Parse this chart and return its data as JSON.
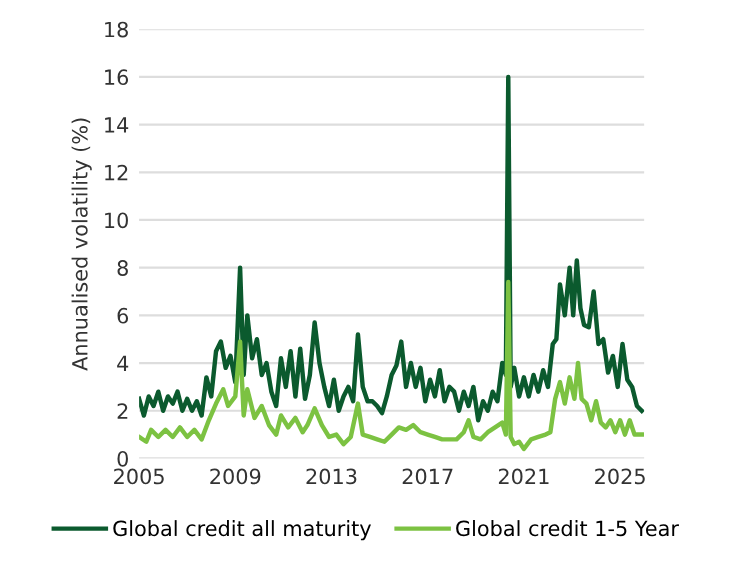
{
  "chart_data": {
    "type": "line",
    "ylabel": "Annualised volatility (%)",
    "xlim": [
      2005,
      2026
    ],
    "xticks": [
      2005,
      2009,
      2013,
      2017,
      2021,
      2025
    ],
    "ylim": [
      0,
      18
    ],
    "yticks": [
      0,
      2,
      4,
      6,
      8,
      10,
      12,
      14,
      16,
      18
    ],
    "grid": "y",
    "legend": "bottom",
    "marker": "none",
    "line_style": "solid",
    "series": [
      {
        "name": "Global credit all maturity",
        "color": "#0b5a2e",
        "x": [
          2005.0,
          2005.2,
          2005.4,
          2005.6,
          2005.8,
          2006.0,
          2006.2,
          2006.4,
          2006.6,
          2006.8,
          2007.0,
          2007.2,
          2007.4,
          2007.6,
          2007.8,
          2008.0,
          2008.2,
          2008.4,
          2008.6,
          2008.8,
          2009.0,
          2009.2,
          2009.35,
          2009.5,
          2009.7,
          2009.9,
          2010.1,
          2010.3,
          2010.5,
          2010.7,
          2010.9,
          2011.1,
          2011.3,
          2011.5,
          2011.7,
          2011.9,
          2012.1,
          2012.3,
          2012.5,
          2012.7,
          2012.9,
          2013.1,
          2013.3,
          2013.5,
          2013.7,
          2013.9,
          2014.1,
          2014.3,
          2014.5,
          2014.7,
          2014.9,
          2015.1,
          2015.3,
          2015.5,
          2015.7,
          2015.9,
          2016.1,
          2016.3,
          2016.5,
          2016.7,
          2016.9,
          2017.1,
          2017.3,
          2017.5,
          2017.7,
          2017.9,
          2018.1,
          2018.3,
          2018.5,
          2018.7,
          2018.9,
          2019.1,
          2019.3,
          2019.5,
          2019.7,
          2019.9,
          2020.1,
          2020.25,
          2020.35,
          2020.45,
          2020.6,
          2020.8,
          2021.0,
          2021.2,
          2021.4,
          2021.6,
          2021.8,
          2022.0,
          2022.2,
          2022.35,
          2022.5,
          2022.7,
          2022.9,
          2023.05,
          2023.2,
          2023.35,
          2023.5,
          2023.7,
          2023.9,
          2024.1,
          2024.3,
          2024.5,
          2024.7,
          2024.9,
          2025.1,
          2025.3,
          2025.5,
          2025.7,
          2025.9
        ],
        "values": [
          2.5,
          1.8,
          2.6,
          2.2,
          2.8,
          2.0,
          2.6,
          2.3,
          2.8,
          2.0,
          2.5,
          2.0,
          2.4,
          1.8,
          3.4,
          2.6,
          4.5,
          4.9,
          3.8,
          4.3,
          3.2,
          8.0,
          3.5,
          6.0,
          4.2,
          5.0,
          3.5,
          4.0,
          2.8,
          2.2,
          4.2,
          3.0,
          4.5,
          2.6,
          4.6,
          2.5,
          3.5,
          5.7,
          4.0,
          3.0,
          2.2,
          3.3,
          2.0,
          2.6,
          3.0,
          2.4,
          5.2,
          3.0,
          2.4,
          2.4,
          2.2,
          1.9,
          2.6,
          3.5,
          3.9,
          4.9,
          3.0,
          4.0,
          3.0,
          3.8,
          2.4,
          3.3,
          2.6,
          3.7,
          2.4,
          3.0,
          2.8,
          2.0,
          2.8,
          2.2,
          3.0,
          1.6,
          2.4,
          2.0,
          2.8,
          2.4,
          4.0,
          3.5,
          16.0,
          3.0,
          3.8,
          2.6,
          3.4,
          2.6,
          3.5,
          2.8,
          3.7,
          3.0,
          4.8,
          5.0,
          7.3,
          6.0,
          8.0,
          6.0,
          8.3,
          6.3,
          5.6,
          5.5,
          7.0,
          4.8,
          5.0,
          3.6,
          4.3,
          3.0,
          4.8,
          3.3,
          3.0,
          2.2,
          2.0
        ]
      },
      {
        "name": "Global credit 1-5 Year",
        "color": "#7cc242",
        "x": [
          2005.0,
          2005.3,
          2005.5,
          2005.8,
          2006.1,
          2006.4,
          2006.7,
          2007.0,
          2007.3,
          2007.6,
          2007.9,
          2008.2,
          2008.5,
          2008.7,
          2009.0,
          2009.2,
          2009.35,
          2009.5,
          2009.8,
          2010.1,
          2010.4,
          2010.7,
          2010.9,
          2011.2,
          2011.5,
          2011.8,
          2012.0,
          2012.3,
          2012.6,
          2012.9,
          2013.2,
          2013.5,
          2013.8,
          2014.1,
          2014.3,
          2014.6,
          2014.9,
          2015.2,
          2015.5,
          2015.8,
          2016.1,
          2016.4,
          2016.7,
          2017.0,
          2017.3,
          2017.6,
          2017.9,
          2018.2,
          2018.5,
          2018.7,
          2018.9,
          2019.2,
          2019.5,
          2019.8,
          2020.1,
          2020.25,
          2020.35,
          2020.45,
          2020.6,
          2020.8,
          2021.0,
          2021.3,
          2021.6,
          2021.9,
          2022.1,
          2022.3,
          2022.5,
          2022.7,
          2022.9,
          2023.1,
          2023.25,
          2023.4,
          2023.6,
          2023.8,
          2024.0,
          2024.2,
          2024.4,
          2024.6,
          2024.8,
          2025.0,
          2025.2,
          2025.4,
          2025.6,
          2025.9
        ],
        "values": [
          0.9,
          0.7,
          1.2,
          0.9,
          1.2,
          0.9,
          1.3,
          0.9,
          1.2,
          0.8,
          1.6,
          2.3,
          2.9,
          2.2,
          2.6,
          4.9,
          1.8,
          2.9,
          1.7,
          2.2,
          1.4,
          1.0,
          1.8,
          1.3,
          1.7,
          1.1,
          1.4,
          2.1,
          1.4,
          0.9,
          1.0,
          0.6,
          0.9,
          2.3,
          1.0,
          0.9,
          0.8,
          0.7,
          1.0,
          1.3,
          1.2,
          1.4,
          1.1,
          1.0,
          0.9,
          0.8,
          0.8,
          0.8,
          1.1,
          1.6,
          0.9,
          0.8,
          1.1,
          1.3,
          1.5,
          1.0,
          7.4,
          0.9,
          0.6,
          0.7,
          0.4,
          0.8,
          0.9,
          1.0,
          1.1,
          2.5,
          3.2,
          2.3,
          3.4,
          2.5,
          4.0,
          2.5,
          2.3,
          1.6,
          2.4,
          1.5,
          1.3,
          1.6,
          1.1,
          1.6,
          1.0,
          1.6,
          1.0,
          1.0
        ]
      }
    ]
  }
}
